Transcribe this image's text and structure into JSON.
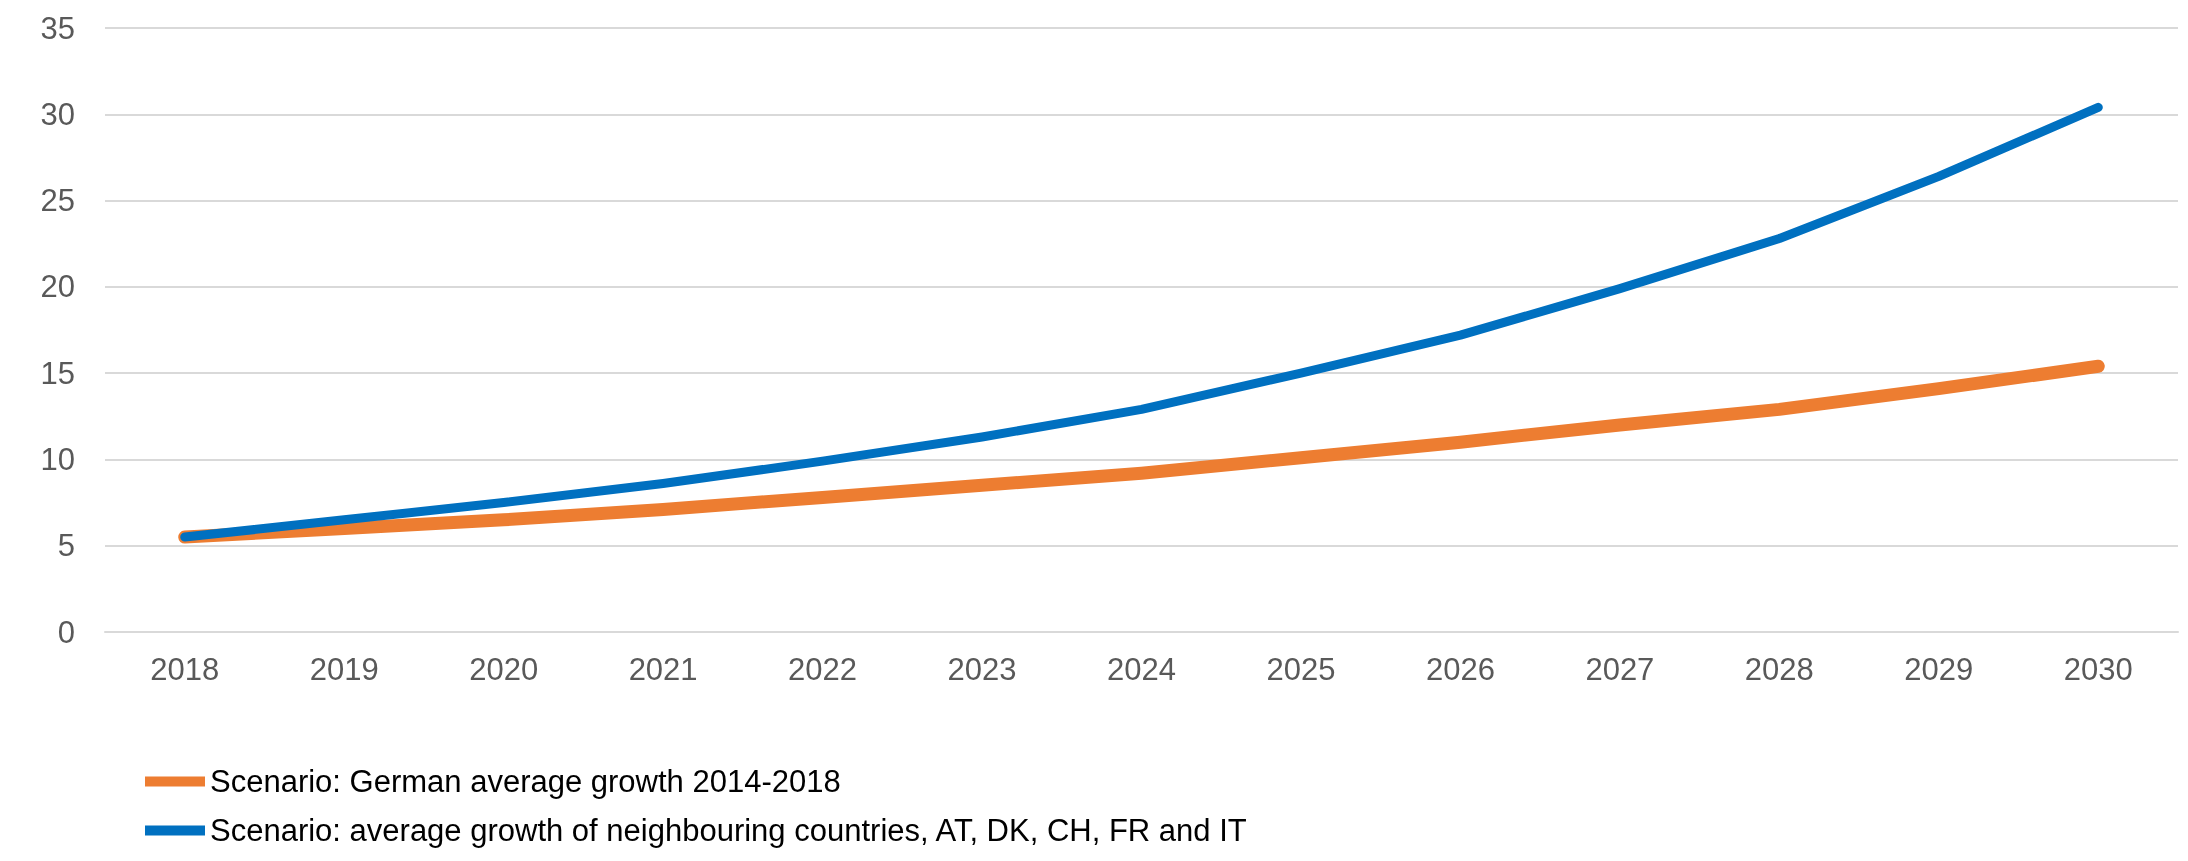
{
  "chart_data": {
    "type": "line",
    "categories": [
      "2018",
      "2019",
      "2020",
      "2021",
      "2022",
      "2023",
      "2024",
      "2025",
      "2026",
      "2027",
      "2028",
      "2029",
      "2030"
    ],
    "series": [
      {
        "name": "Scenario: German average growth 2014-2018",
        "color": "#ed7d31",
        "values": [
          5.5,
          6.0,
          6.5,
          7.1,
          7.8,
          8.5,
          9.2,
          10.1,
          11.0,
          12.0,
          12.9,
          14.1,
          15.4
        ]
      },
      {
        "name": "Scenario: average growth of neighbouring countries, AT, DK, CH, FR and IT",
        "color": "#0070c0",
        "values": [
          5.5,
          6.5,
          7.5,
          8.6,
          9.9,
          11.3,
          12.9,
          15.0,
          17.2,
          19.9,
          22.8,
          26.4,
          30.4
        ]
      }
    ],
    "ylim": [
      0,
      35
    ],
    "yticks": [
      0,
      5,
      10,
      15,
      20,
      25,
      30,
      35
    ],
    "grid": "y",
    "legend": "bottom left",
    "marker": "none",
    "line_style": "solid"
  }
}
